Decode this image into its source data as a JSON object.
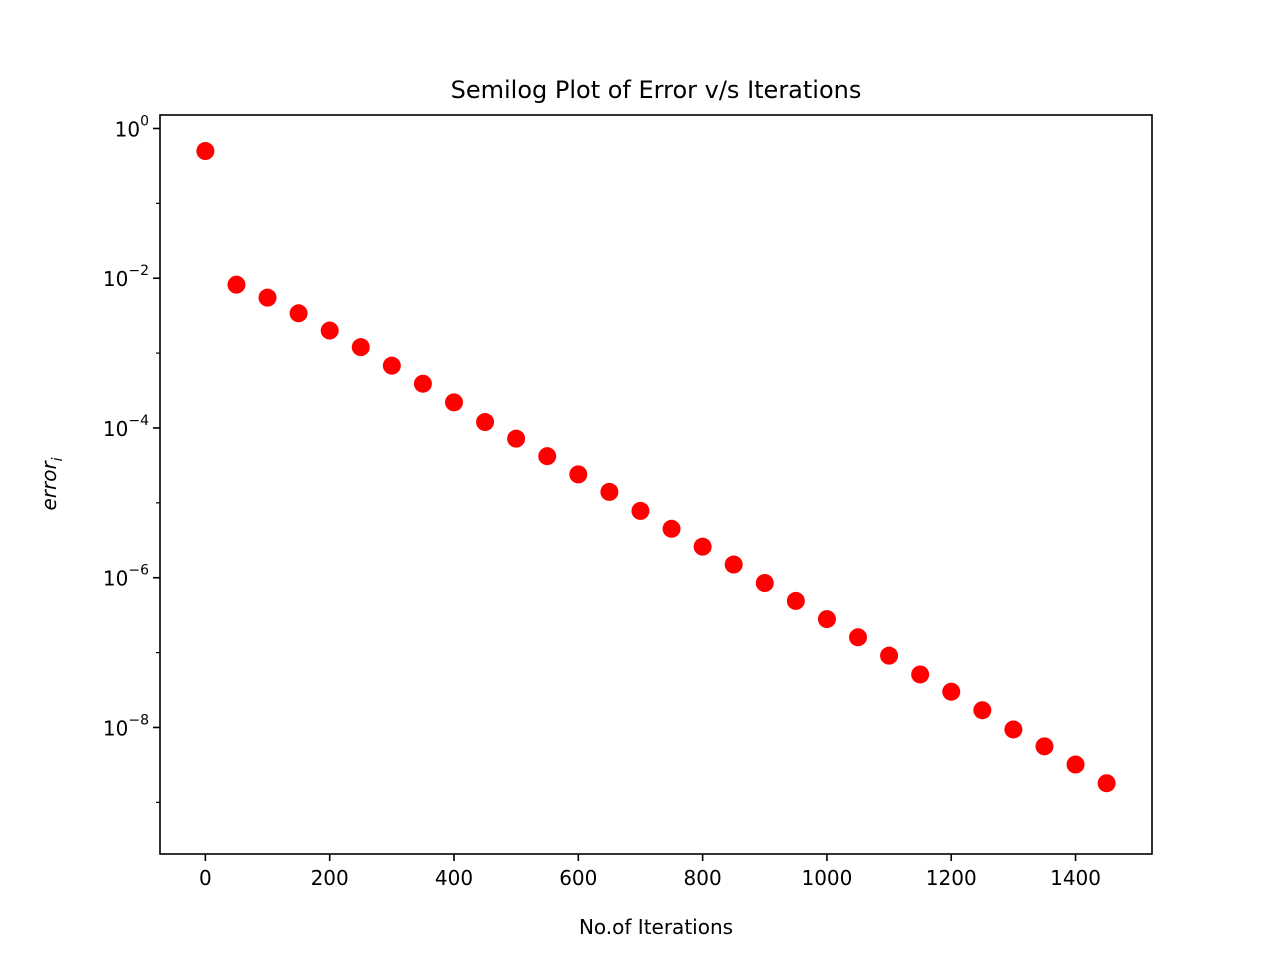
{
  "chart_data": {
    "type": "scatter",
    "title": "Semilog Plot of Error v/s Iterations",
    "xlabel": "No.of Iterations",
    "ylabel_base": "error",
    "ylabel_sub": "i",
    "y_scale": "log",
    "xlim": [
      -73,
      1523
    ],
    "ylim_log10": [
      -9.69,
      0.18
    ],
    "x_ticks": [
      0,
      200,
      400,
      600,
      800,
      1000,
      1200,
      1400
    ],
    "x_tick_labels": [
      "0",
      "200",
      "400",
      "600",
      "800",
      "1000",
      "1200",
      "1400"
    ],
    "y_tick_exponents": [
      0,
      -2,
      -4,
      -6,
      -8
    ],
    "y_tick_labels": [
      {
        "base": "10",
        "exp": "0"
      },
      {
        "base": "10",
        "exp": "−2"
      },
      {
        "base": "10",
        "exp": "−4"
      },
      {
        "base": "10",
        "exp": "−6"
      },
      {
        "base": "10",
        "exp": "−8"
      }
    ],
    "marker_color": "#ff0000",
    "grid": false,
    "legend": "none",
    "x": [
      0,
      50,
      100,
      150,
      200,
      250,
      300,
      350,
      400,
      450,
      500,
      550,
      600,
      650,
      700,
      750,
      800,
      850,
      900,
      950,
      1000,
      1050,
      1100,
      1150,
      1200,
      1250,
      1300,
      1350,
      1400,
      1450
    ],
    "y": [
      0.5,
      0.0082,
      0.0055,
      0.0034,
      0.002,
      0.0012,
      0.00068,
      0.00039,
      0.00022,
      0.00012,
      7.2e-05,
      4.2e-05,
      2.4e-05,
      1.4e-05,
      7.8e-06,
      4.5e-06,
      2.6e-06,
      1.5e-06,
      8.5e-07,
      4.9e-07,
      2.8e-07,
      1.6e-07,
      9.1e-08,
      5.1e-08,
      3e-08,
      1.7e-08,
      9.4e-09,
      5.6e-09,
      3.2e-09,
      1.8e-09
    ]
  }
}
